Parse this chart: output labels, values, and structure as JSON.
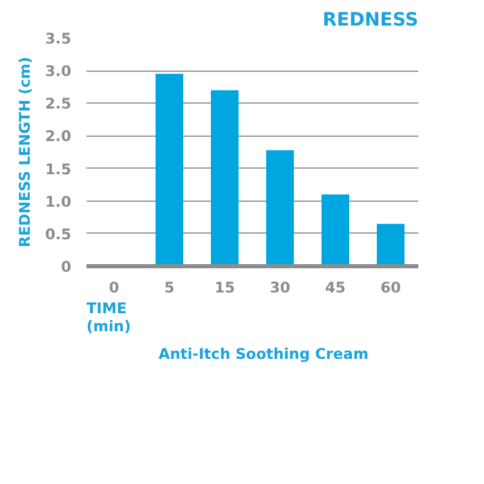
{
  "chart_data": {
    "type": "bar",
    "title": "REDNESS",
    "xlabel": "TIME\n(min)",
    "ylabel": "REDNESS LENGTH (cm)",
    "categories": [
      "0",
      "5",
      "15",
      "30",
      "45",
      "60"
    ],
    "series": [
      {
        "name": "Anti-Itch Soothing Cream",
        "color": "#00a6e0",
        "values": [
          null,
          2.95,
          2.7,
          1.78,
          1.1,
          0.65
        ]
      }
    ],
    "ylim": [
      0,
      3.5
    ],
    "yticks": [
      0,
      0.5,
      {
        "value": 1,
        "label": "1.0"
      },
      1.5,
      {
        "value": 2,
        "label": "2.0"
      },
      2.5,
      {
        "value": 3,
        "label": "3.0"
      },
      3.5
    ],
    "grid": "y",
    "legend": "bottom"
  }
}
